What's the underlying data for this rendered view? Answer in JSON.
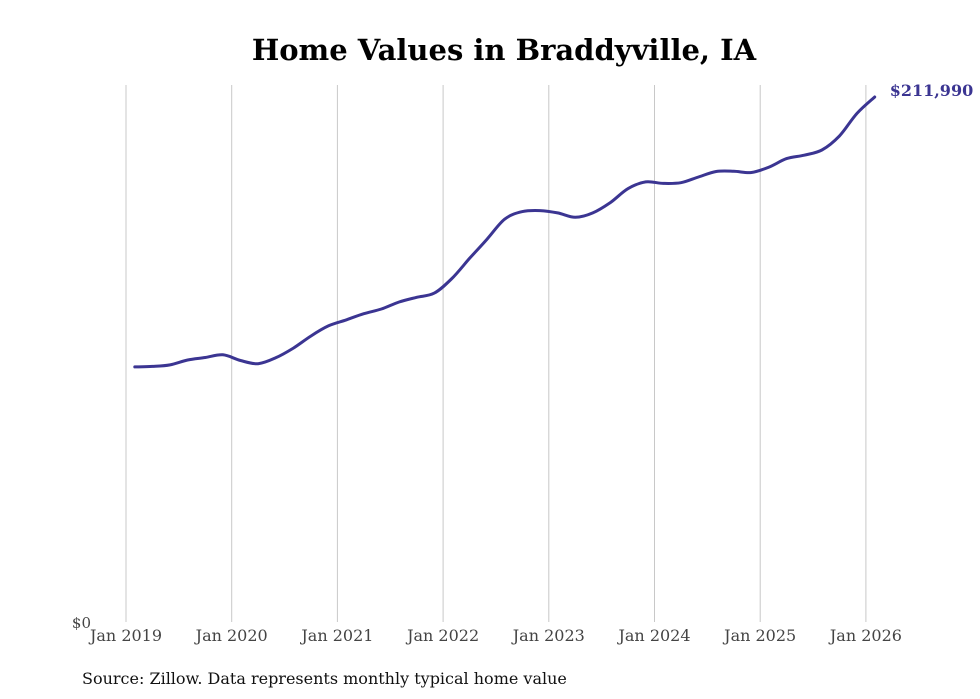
{
  "chart_data": {
    "type": "line",
    "title": "Home Values in Braddyville, IA",
    "source_note": "Source: Zillow. Data represents monthly typical home value",
    "x_tick_labels": [
      "Jan 2019",
      "Jan 2020",
      "Jan 2021",
      "Jan 2022",
      "Jan 2023",
      "Jan 2024",
      "Jan 2025",
      "Jan 2026"
    ],
    "y_tick_label": "$0",
    "end_label": "$211,990",
    "ylim": [
      0,
      211990
    ],
    "grid": "vertical",
    "line_color": "#3b3592",
    "series": [
      {
        "x": [
          "2019-02",
          "2019-04",
          "2019-06",
          "2019-08",
          "2019-10",
          "2019-12",
          "2020-02",
          "2020-04",
          "2020-06",
          "2020-08",
          "2020-10",
          "2020-12",
          "2021-02",
          "2021-04",
          "2021-06",
          "2021-08",
          "2021-10",
          "2021-12",
          "2022-02",
          "2022-04",
          "2022-06",
          "2022-08",
          "2022-10",
          "2022-12",
          "2023-02",
          "2023-04",
          "2023-06",
          "2023-08",
          "2023-10",
          "2023-12",
          "2024-02",
          "2024-04",
          "2024-06",
          "2024-08",
          "2024-10",
          "2024-12",
          "2025-02",
          "2025-04",
          "2025-06",
          "2025-08",
          "2025-10",
          "2025-12",
          "2026-02"
        ],
        "y": [
          103000,
          103200,
          103800,
          105800,
          106800,
          107900,
          105600,
          104300,
          106700,
          110600,
          115500,
          119600,
          122000,
          124500,
          126400,
          129200,
          131100,
          132800,
          138700,
          146800,
          154600,
          162700,
          165700,
          166100,
          165200,
          163400,
          165200,
          169400,
          175000,
          177700,
          177100,
          177400,
          179700,
          181900,
          182000,
          181500,
          183700,
          187100,
          188500,
          190600,
          196300,
          205400,
          211990
        ]
      }
    ]
  }
}
